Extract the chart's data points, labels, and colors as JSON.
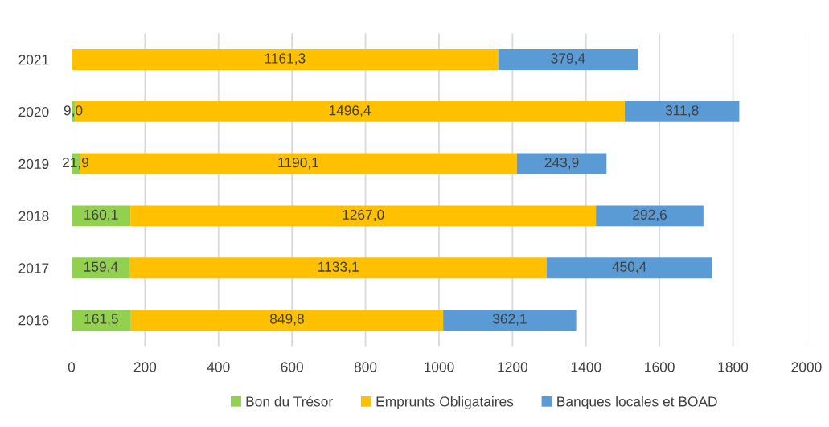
{
  "chart_data": {
    "type": "bar",
    "orientation": "horizontal",
    "stacked": true,
    "categories": [
      "2021",
      "2020",
      "2019",
      "2018",
      "2017",
      "2016"
    ],
    "series": [
      {
        "name": "Bon du Trésor",
        "color": "#92d050",
        "values": [
          null,
          9.0,
          21.9,
          160.1,
          159.4,
          161.5
        ],
        "value_labels": [
          null,
          "9,0",
          "21,9",
          "160,1",
          "159,4",
          "161,5"
        ]
      },
      {
        "name": "Emprunts Obligataires",
        "color": "#ffc000",
        "values": [
          1161.3,
          1496.4,
          1190.1,
          1267.0,
          1133.1,
          849.8
        ],
        "value_labels": [
          "1161,3",
          "1496,4",
          "1190,1",
          "1267,0",
          "1133,1",
          "849,8"
        ]
      },
      {
        "name": "Banques locales et BOAD",
        "color": "#5b9bd5",
        "values": [
          379.4,
          311.8,
          243.9,
          292.6,
          450.4,
          362.1
        ],
        "value_labels": [
          "379,4",
          "311,8",
          "243,9",
          "292,6",
          "450,4",
          "362,1"
        ]
      }
    ],
    "xlim": [
      0,
      2000
    ],
    "xticks": [
      0,
      200,
      400,
      600,
      800,
      1000,
      1200,
      1400,
      1600,
      1800,
      2000
    ],
    "grid": "x",
    "legend": "bottom"
  }
}
